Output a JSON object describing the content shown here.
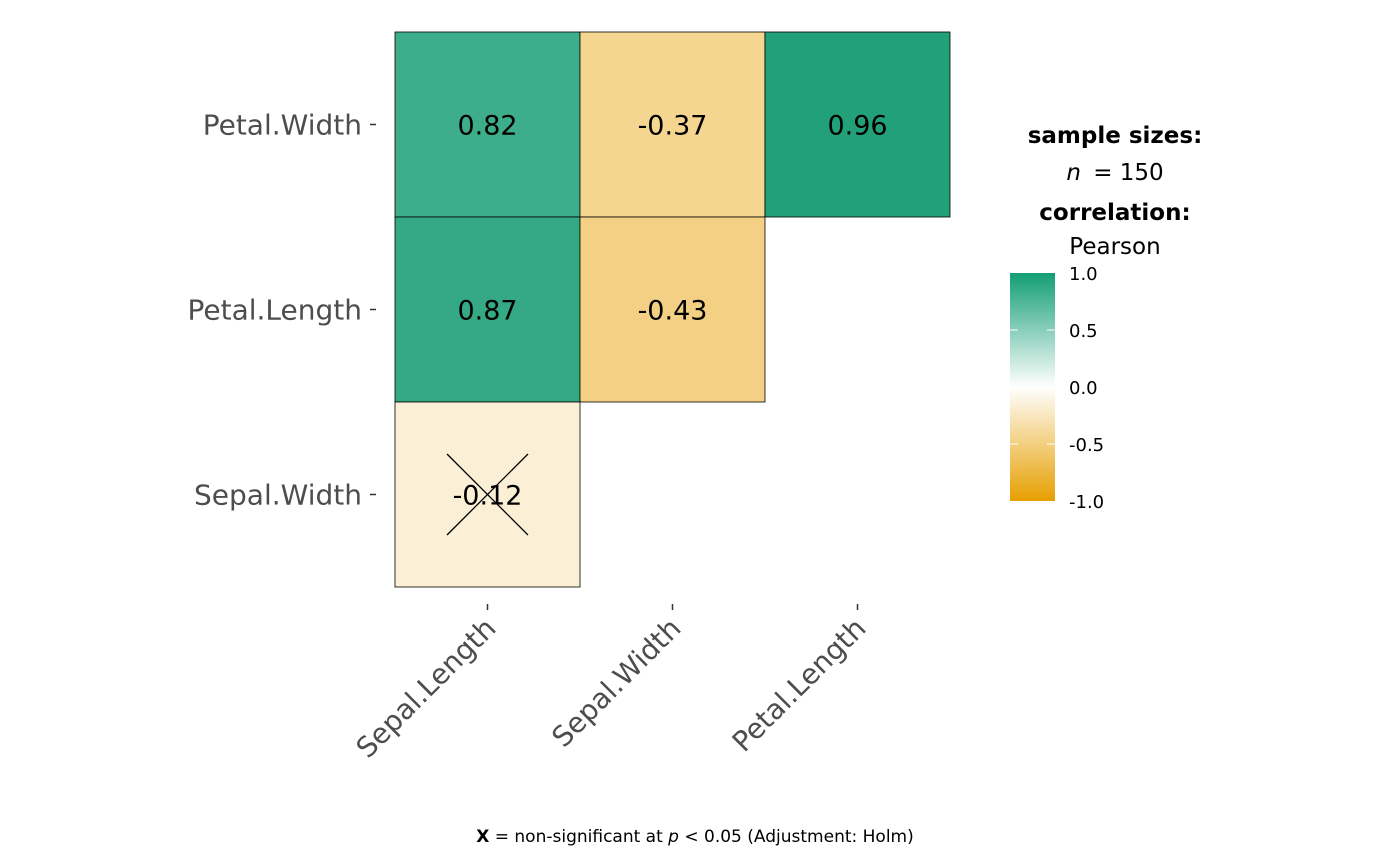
{
  "chart_data": {
    "type": "heatmap",
    "x_categories": [
      "Sepal.Length",
      "Sepal.Width",
      "Petal.Length"
    ],
    "y_categories": [
      "Sepal.Width",
      "Petal.Length",
      "Petal.Width"
    ],
    "cells": [
      {
        "x": "Sepal.Length",
        "y": "Petal.Width",
        "value": 0.82,
        "label": "0.82",
        "significant": true
      },
      {
        "x": "Sepal.Width",
        "y": "Petal.Width",
        "value": -0.37,
        "label": "-0.37",
        "significant": true
      },
      {
        "x": "Petal.Length",
        "y": "Petal.Width",
        "value": 0.96,
        "label": "0.96",
        "significant": true
      },
      {
        "x": "Sepal.Length",
        "y": "Petal.Length",
        "value": 0.87,
        "label": "0.87",
        "significant": true
      },
      {
        "x": "Sepal.Width",
        "y": "Petal.Length",
        "value": -0.43,
        "label": "-0.43",
        "significant": true
      },
      {
        "x": "Sepal.Length",
        "y": "Sepal.Width",
        "value": -0.12,
        "label": "-0.12",
        "significant": false
      }
    ],
    "legend": {
      "title1": "sample sizes:",
      "n_label": "n",
      "n_value": "= 150",
      "title2": "correlation:",
      "method": "Pearson",
      "ticks": [
        "1.0",
        "0.5",
        "0.0",
        "-0.5",
        "-1.0"
      ],
      "range": [
        -1,
        1
      ],
      "colors": {
        "low": "#E69F00",
        "mid": "#FFFFFF",
        "high": "#009E73"
      },
      "placement": "right"
    },
    "caption": {
      "mark": "X",
      "text1": " = non-significant at ",
      "p": "p",
      "text2": " < 0.05 (Adjustment: Holm)"
    }
  }
}
